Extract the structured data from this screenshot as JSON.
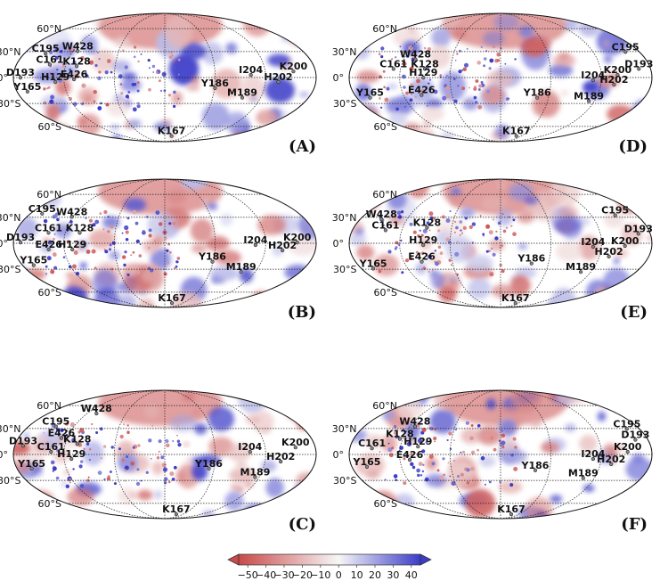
{
  "panels": [
    {
      "id": "A",
      "label": "(A)",
      "points": [
        {
          "name": "C195",
          "lon": -158,
          "lat": 33
        },
        {
          "name": "W428",
          "lon": -118,
          "lat": 36
        },
        {
          "name": "C161",
          "lon": -142,
          "lat": 20
        },
        {
          "name": "K128",
          "lon": -108,
          "lat": 18
        },
        {
          "name": "D193",
          "lon": -172,
          "lat": 5
        },
        {
          "name": "H129",
          "lon": -130,
          "lat": 0
        },
        {
          "name": "E426",
          "lon": -108,
          "lat": 3
        },
        {
          "name": "Y165",
          "lon": -165,
          "lat": -11
        },
        {
          "name": "I204",
          "lon": 103,
          "lat": 8
        },
        {
          "name": "K200",
          "lon": 155,
          "lat": 12
        },
        {
          "name": "H202",
          "lon": 135,
          "lat": 0
        },
        {
          "name": "Y186",
          "lon": 60,
          "lat": -7
        },
        {
          "name": "M189",
          "lon": 95,
          "lat": -18
        },
        {
          "name": "K167",
          "lon": 15,
          "lat": -68
        }
      ]
    },
    {
      "id": "D",
      "label": "(D)",
      "points": [
        {
          "name": "C195",
          "lon": 168,
          "lat": 35
        },
        {
          "name": "W428",
          "lon": -108,
          "lat": 26
        },
        {
          "name": "C161",
          "lon": -130,
          "lat": 15
        },
        {
          "name": "K128",
          "lon": -92,
          "lat": 15
        },
        {
          "name": "H129",
          "lon": -92,
          "lat": 5
        },
        {
          "name": "D193",
          "lon": 168,
          "lat": 15
        },
        {
          "name": "K200",
          "lon": 140,
          "lat": 8
        },
        {
          "name": "I204",
          "lon": 110,
          "lat": 2
        },
        {
          "name": "H202",
          "lon": 135,
          "lat": -3
        },
        {
          "name": "E426",
          "lon": -96,
          "lat": -15
        },
        {
          "name": "Y165",
          "lon": -160,
          "lat": -18
        },
        {
          "name": "Y186",
          "lon": 45,
          "lat": -18
        },
        {
          "name": "M189",
          "lon": 110,
          "lat": -22
        },
        {
          "name": "K167",
          "lon": 35,
          "lat": -68
        }
      ]
    },
    {
      "id": "B",
      "label": "(B)",
      "points": [
        {
          "name": "C195",
          "lon": -172,
          "lat": 40
        },
        {
          "name": "W428",
          "lon": -126,
          "lat": 36
        },
        {
          "name": "C161",
          "lon": -142,
          "lat": 17
        },
        {
          "name": "K128",
          "lon": -104,
          "lat": 17
        },
        {
          "name": "D193",
          "lon": -172,
          "lat": 6
        },
        {
          "name": "E426",
          "lon": -138,
          "lat": -2
        },
        {
          "name": "H129",
          "lon": -110,
          "lat": -2
        },
        {
          "name": "Y165",
          "lon": -162,
          "lat": -20
        },
        {
          "name": "I204",
          "lon": 108,
          "lat": 3
        },
        {
          "name": "K200",
          "lon": 158,
          "lat": 6
        },
        {
          "name": "H202",
          "lon": 140,
          "lat": -3
        },
        {
          "name": "Y186",
          "lon": 58,
          "lat": -16
        },
        {
          "name": "M189",
          "lon": 98,
          "lat": -28
        },
        {
          "name": "K167",
          "lon": 17,
          "lat": -70
        }
      ]
    },
    {
      "id": "E",
      "label": "(E)",
      "points": [
        {
          "name": "W428",
          "lon": -158,
          "lat": 33
        },
        {
          "name": "C195",
          "lon": 158,
          "lat": 38
        },
        {
          "name": "C161",
          "lon": -142,
          "lat": 20
        },
        {
          "name": "K128",
          "lon": -92,
          "lat": 23
        },
        {
          "name": "D193",
          "lon": 168,
          "lat": 16
        },
        {
          "name": "H129",
          "lon": -92,
          "lat": 3
        },
        {
          "name": "I204",
          "lon": 110,
          "lat": 1
        },
        {
          "name": "K200",
          "lon": 148,
          "lat": 2
        },
        {
          "name": "H202",
          "lon": 130,
          "lat": -10
        },
        {
          "name": "E426",
          "lon": -96,
          "lat": -16
        },
        {
          "name": "Y165",
          "lon": -160,
          "lat": -24
        },
        {
          "name": "Y186",
          "lon": 38,
          "lat": -18
        },
        {
          "name": "M189",
          "lon": 103,
          "lat": -28
        },
        {
          "name": "K167",
          "lon": 35,
          "lat": -70
        }
      ]
    },
    {
      "id": "C",
      "label": "(C)",
      "points": [
        {
          "name": "W428",
          "lon": -115,
          "lat": 55
        },
        {
          "name": "C195",
          "lon": -150,
          "lat": 38
        },
        {
          "name": "E426",
          "lon": -130,
          "lat": 24
        },
        {
          "name": "K128",
          "lon": -107,
          "lat": 17
        },
        {
          "name": "D193",
          "lon": -172,
          "lat": 15
        },
        {
          "name": "C161",
          "lon": -136,
          "lat": 8
        },
        {
          "name": "H129",
          "lon": -111,
          "lat": 0
        },
        {
          "name": "Y165",
          "lon": -160,
          "lat": -11
        },
        {
          "name": "I204",
          "lon": 102,
          "lat": 8
        },
        {
          "name": "K200",
          "lon": 158,
          "lat": 13
        },
        {
          "name": "H202",
          "lon": 138,
          "lat": -3
        },
        {
          "name": "Y186",
          "lon": 53,
          "lat": -11
        },
        {
          "name": "M189",
          "lon": 112,
          "lat": -21
        },
        {
          "name": "K167",
          "lon": 27,
          "lat": -70
        }
      ]
    },
    {
      "id": "F",
      "label": "(F)",
      "points": [
        {
          "name": "C195",
          "lon": 170,
          "lat": 35
        },
        {
          "name": "W428",
          "lon": -118,
          "lat": 38
        },
        {
          "name": "K128",
          "lon": -126,
          "lat": 23
        },
        {
          "name": "D193",
          "lon": 168,
          "lat": 22
        },
        {
          "name": "H129",
          "lon": -100,
          "lat": 14
        },
        {
          "name": "C161",
          "lon": -155,
          "lat": 12
        },
        {
          "name": "K200",
          "lon": 152,
          "lat": 8
        },
        {
          "name": "I204",
          "lon": 110,
          "lat": 0
        },
        {
          "name": "E426",
          "lon": -108,
          "lat": -1
        },
        {
          "name": "H202",
          "lon": 132,
          "lat": -6
        },
        {
          "name": "Y165",
          "lon": -160,
          "lat": -9
        },
        {
          "name": "Y186",
          "lon": 42,
          "lat": -13
        },
        {
          "name": "M189",
          "lon": 103,
          "lat": -22
        },
        {
          "name": "K167",
          "lon": 25,
          "lat": -70
        }
      ]
    }
  ],
  "lat_labels": [
    "60°N",
    "30°N",
    "0°",
    "30°S",
    "60°S"
  ],
  "colorbar": {
    "ticks": [
      "−50",
      "−40",
      "−30",
      "−20",
      "−10",
      "0",
      "10",
      "20",
      "30",
      "40"
    ],
    "tick_values": [
      -50,
      -40,
      -30,
      -20,
      -10,
      0,
      10,
      20,
      30,
      40
    ],
    "vmin": -55,
    "vmax": 45,
    "colors": {
      "neg": "#c84a4a",
      "zero": "#f7f7f7",
      "pos": "#3c3cc8"
    }
  }
}
